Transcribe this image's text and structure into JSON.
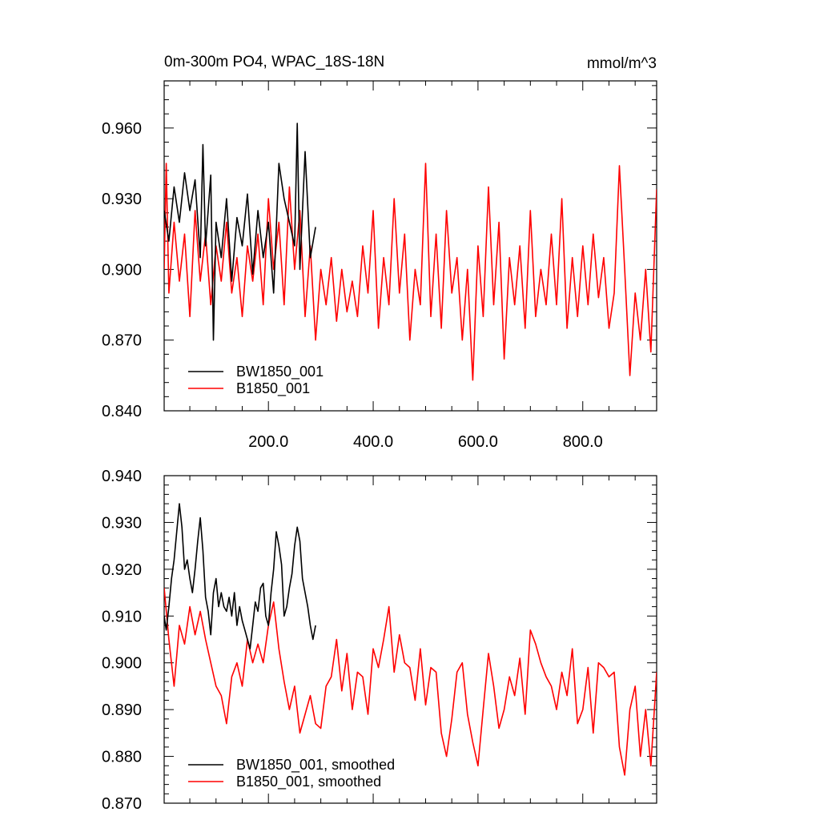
{
  "title_left": "0m-300m PO4, WPAC_18S-18N",
  "title_right": "mmol/m^3",
  "colors": {
    "bw": "#000000",
    "b": "#ff0000",
    "axis": "#000000",
    "background": "#ffffff"
  },
  "chart_data": [
    {
      "type": "line",
      "xlim": [
        1,
        941
      ],
      "ylim": [
        0.84,
        0.98
      ],
      "x_ticks": [
        200,
        400,
        600,
        800
      ],
      "x_tick_labels": [
        "200.0",
        "400.0",
        "600.0",
        "800.0"
      ],
      "y_ticks": [
        0.84,
        0.87,
        0.9,
        0.93,
        0.96
      ],
      "y_tick_labels": [
        "0.840",
        "0.870",
        "0.900",
        "0.930",
        "0.960"
      ],
      "legend_position": "bottom-left",
      "series": [
        {
          "name": "BW1850_001",
          "color": "#000000",
          "x": [
            1,
            10,
            20,
            30,
            40,
            50,
            60,
            70,
            75,
            80,
            90,
            95,
            100,
            110,
            120,
            130,
            140,
            150,
            160,
            170,
            180,
            190,
            200,
            210,
            220,
            230,
            240,
            250,
            255,
            260,
            270,
            280,
            290
          ],
          "values": [
            0.925,
            0.912,
            0.935,
            0.92,
            0.941,
            0.925,
            0.938,
            0.905,
            0.953,
            0.91,
            0.94,
            0.87,
            0.92,
            0.905,
            0.93,
            0.895,
            0.922,
            0.91,
            0.932,
            0.898,
            0.925,
            0.905,
            0.92,
            0.89,
            0.945,
            0.93,
            0.92,
            0.91,
            0.962,
            0.9,
            0.95,
            0.905,
            0.918
          ]
        },
        {
          "name": "B1850_001",
          "color": "#ff0000",
          "x": [
            1,
            5,
            10,
            20,
            30,
            40,
            50,
            60,
            70,
            80,
            90,
            100,
            110,
            120,
            130,
            140,
            150,
            160,
            170,
            180,
            190,
            200,
            210,
            220,
            230,
            240,
            250,
            260,
            270,
            280,
            290,
            300,
            310,
            320,
            330,
            340,
            350,
            360,
            370,
            380,
            390,
            400,
            410,
            420,
            430,
            440,
            450,
            460,
            470,
            480,
            490,
            500,
            510,
            520,
            530,
            540,
            550,
            560,
            570,
            580,
            590,
            600,
            610,
            620,
            630,
            640,
            650,
            660,
            670,
            680,
            690,
            700,
            710,
            720,
            730,
            740,
            750,
            760,
            770,
            780,
            790,
            800,
            810,
            820,
            830,
            840,
            850,
            860,
            870,
            880,
            890,
            900,
            910,
            920,
            930,
            941
          ],
          "values": [
            0.9,
            0.945,
            0.89,
            0.92,
            0.895,
            0.915,
            0.88,
            0.925,
            0.895,
            0.915,
            0.885,
            0.91,
            0.895,
            0.92,
            0.89,
            0.905,
            0.88,
            0.91,
            0.895,
            0.915,
            0.885,
            0.93,
            0.9,
            0.92,
            0.885,
            0.935,
            0.9,
            0.925,
            0.88,
            0.91,
            0.87,
            0.9,
            0.885,
            0.905,
            0.878,
            0.9,
            0.882,
            0.895,
            0.88,
            0.91,
            0.89,
            0.925,
            0.875,
            0.905,
            0.885,
            0.93,
            0.89,
            0.915,
            0.87,
            0.9,
            0.885,
            0.945,
            0.88,
            0.915,
            0.875,
            0.925,
            0.89,
            0.905,
            0.87,
            0.9,
            0.853,
            0.91,
            0.88,
            0.935,
            0.885,
            0.92,
            0.862,
            0.905,
            0.885,
            0.91,
            0.875,
            0.925,
            0.88,
            0.9,
            0.885,
            0.915,
            0.885,
            0.93,
            0.875,
            0.905,
            0.88,
            0.91,
            0.885,
            0.915,
            0.888,
            0.905,
            0.875,
            0.89,
            0.944,
            0.9,
            0.855,
            0.89,
            0.87,
            0.9,
            0.865,
            0.934
          ]
        }
      ]
    },
    {
      "type": "line",
      "xlim": [
        1,
        941
      ],
      "ylim": [
        0.87,
        0.94
      ],
      "y_ticks": [
        0.87,
        0.88,
        0.89,
        0.9,
        0.91,
        0.92,
        0.93,
        0.94
      ],
      "y_tick_labels": [
        "0.870",
        "0.880",
        "0.890",
        "0.900",
        "0.910",
        "0.920",
        "0.930",
        "0.940"
      ],
      "legend_position": "bottom-left",
      "series": [
        {
          "name": "BW1850_001, smoothed",
          "color": "#000000",
          "x": [
            1,
            5,
            10,
            15,
            20,
            25,
            30,
            35,
            40,
            45,
            50,
            55,
            60,
            65,
            70,
            75,
            80,
            85,
            90,
            95,
            100,
            105,
            110,
            115,
            120,
            125,
            130,
            135,
            140,
            145,
            150,
            155,
            160,
            165,
            170,
            175,
            180,
            185,
            190,
            195,
            200,
            205,
            210,
            215,
            220,
            225,
            230,
            235,
            240,
            245,
            250,
            255,
            260,
            265,
            270,
            275,
            280,
            285,
            290
          ],
          "values": [
            0.91,
            0.907,
            0.912,
            0.918,
            0.922,
            0.928,
            0.934,
            0.929,
            0.92,
            0.922,
            0.918,
            0.915,
            0.92,
            0.926,
            0.931,
            0.924,
            0.914,
            0.911,
            0.906,
            0.915,
            0.918,
            0.912,
            0.915,
            0.912,
            0.911,
            0.914,
            0.91,
            0.915,
            0.908,
            0.912,
            0.909,
            0.907,
            0.905,
            0.903,
            0.908,
            0.913,
            0.911,
            0.916,
            0.917,
            0.91,
            0.908,
            0.915,
            0.92,
            0.928,
            0.925,
            0.921,
            0.91,
            0.912,
            0.916,
            0.919,
            0.925,
            0.929,
            0.926,
            0.918,
            0.915,
            0.912,
            0.908,
            0.905,
            0.908
          ]
        },
        {
          "name": "B1850_001, smoothed",
          "color": "#ff0000",
          "x": [
            1,
            10,
            20,
            30,
            40,
            50,
            60,
            70,
            80,
            90,
            100,
            110,
            120,
            130,
            140,
            150,
            160,
            170,
            180,
            190,
            200,
            210,
            220,
            230,
            240,
            250,
            260,
            270,
            280,
            290,
            300,
            310,
            320,
            330,
            340,
            350,
            360,
            370,
            380,
            390,
            400,
            410,
            420,
            430,
            440,
            450,
            460,
            470,
            480,
            490,
            500,
            510,
            520,
            530,
            540,
            550,
            560,
            570,
            580,
            590,
            600,
            610,
            620,
            630,
            640,
            650,
            660,
            670,
            680,
            690,
            700,
            710,
            720,
            730,
            740,
            750,
            760,
            770,
            780,
            790,
            800,
            810,
            820,
            830,
            840,
            850,
            860,
            870,
            880,
            890,
            900,
            910,
            920,
            930,
            941
          ],
          "values": [
            0.916,
            0.905,
            0.895,
            0.908,
            0.904,
            0.912,
            0.906,
            0.911,
            0.905,
            0.9,
            0.895,
            0.893,
            0.887,
            0.897,
            0.9,
            0.895,
            0.905,
            0.9,
            0.904,
            0.9,
            0.908,
            0.913,
            0.903,
            0.896,
            0.89,
            0.895,
            0.885,
            0.889,
            0.893,
            0.887,
            0.886,
            0.895,
            0.897,
            0.905,
            0.894,
            0.902,
            0.89,
            0.898,
            0.897,
            0.889,
            0.903,
            0.899,
            0.905,
            0.912,
            0.898,
            0.906,
            0.9,
            0.899,
            0.892,
            0.903,
            0.891,
            0.899,
            0.898,
            0.885,
            0.88,
            0.888,
            0.898,
            0.9,
            0.889,
            0.883,
            0.878,
            0.89,
            0.902,
            0.895,
            0.886,
            0.89,
            0.897,
            0.893,
            0.901,
            0.889,
            0.907,
            0.904,
            0.9,
            0.897,
            0.895,
            0.89,
            0.898,
            0.893,
            0.903,
            0.887,
            0.89,
            0.899,
            0.885,
            0.9,
            0.899,
            0.897,
            0.898,
            0.882,
            0.876,
            0.89,
            0.895,
            0.88,
            0.89,
            0.878,
            0.898
          ]
        }
      ]
    }
  ]
}
